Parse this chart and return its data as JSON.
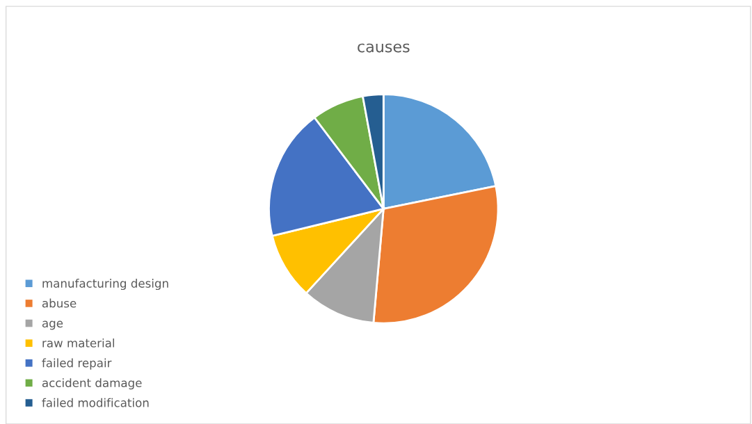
{
  "chart_data": {
    "type": "pie",
    "title": "causes",
    "categories": [
      "manufacturing design",
      "abuse",
      "age",
      "raw material",
      "failed repair",
      "accident damage",
      "failed modification"
    ],
    "values": [
      21.8,
      29.6,
      10.4,
      9.4,
      18.5,
      7.4,
      2.9
    ],
    "colors": [
      "#5b9bd5",
      "#ed7d31",
      "#a5a5a5",
      "#ffc000",
      "#4472c4",
      "#70ad47",
      "#255e91"
    ],
    "legend": "left"
  }
}
